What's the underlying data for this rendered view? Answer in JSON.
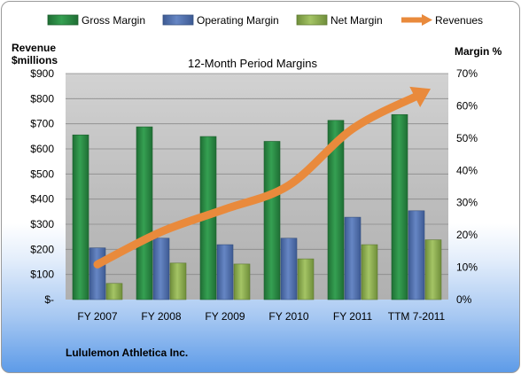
{
  "chart_data": {
    "type": "bar",
    "title": "12-Month Period Margins",
    "ylabel_left": [
      "Revenue",
      "$millions"
    ],
    "ylabel_right": "Margin %",
    "categories": [
      "FY 2007",
      "FY 2008",
      "FY 2009",
      "FY 2010",
      "FY 2011",
      "TTM 7-2011"
    ],
    "left_axis": {
      "min": 0,
      "max": 900,
      "step": 100,
      "ticks": [
        "$-",
        "$100",
        "$200",
        "$300",
        "$400",
        "$500",
        "$600",
        "$700",
        "$800",
        "$900"
      ]
    },
    "right_axis": {
      "min": 0,
      "max": 70,
      "step": 10,
      "ticks": [
        "0%",
        "10%",
        "20%",
        "30%",
        "40%",
        "50%",
        "60%",
        "70%"
      ]
    },
    "series": [
      {
        "name": "Gross Margin",
        "axis": "right",
        "color": "#2e8b45",
        "values": [
          51,
          53.5,
          50.5,
          49,
          55.5,
          57.3
        ]
      },
      {
        "name": "Operating Margin",
        "axis": "right",
        "color": "#4f6fad",
        "values": [
          16,
          19,
          17,
          19,
          25.5,
          27.5
        ]
      },
      {
        "name": "Net Margin",
        "axis": "right",
        "color": "#8fb052",
        "values": [
          5,
          11.3,
          11,
          12.6,
          17,
          18.5
        ]
      },
      {
        "name": "Revenues",
        "axis": "left",
        "type": "line",
        "color": "#e98a3c",
        "values": [
          140,
          270,
          360,
          455,
          680,
          810
        ]
      }
    ],
    "grid": true,
    "legend": "top",
    "footer": "Lululemon Athletica Inc."
  }
}
